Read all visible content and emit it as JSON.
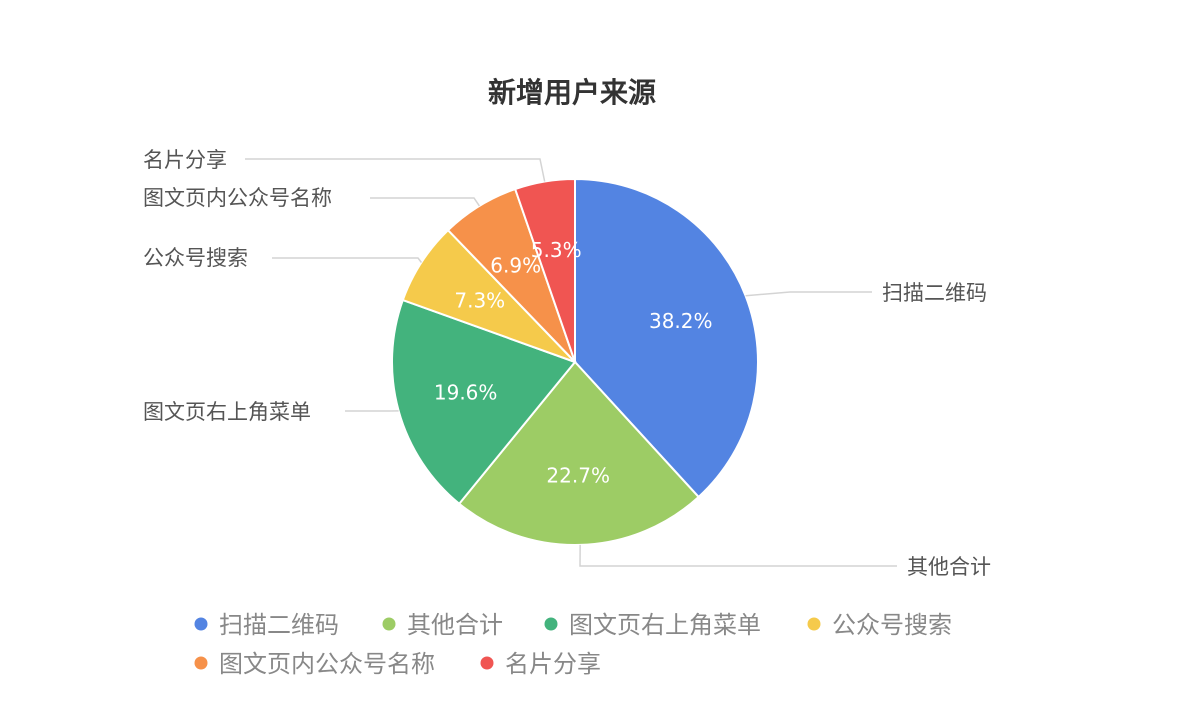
{
  "chart_data": {
    "type": "pie",
    "title": "新增用户来源",
    "slices": [
      {
        "label": "扫描二维码",
        "value": 38.2,
        "value_label": "38.2%",
        "color": "#5384E2"
      },
      {
        "label": "其他合计",
        "value": 22.7,
        "value_label": "22.7%",
        "color": "#9DCC65"
      },
      {
        "label": "图文页右上角菜单",
        "value": 19.6,
        "value_label": "19.6%",
        "color": "#43B37D"
      },
      {
        "label": "公众号搜索",
        "value": 7.3,
        "value_label": "7.3%",
        "color": "#F5CA4B"
      },
      {
        "label": "图文页内公众号名称",
        "value": 6.9,
        "value_label": "6.9%",
        "color": "#F6914A"
      },
      {
        "label": "名片分享",
        "value": 5.3,
        "value_label": "5.3%",
        "color": "#F05552"
      }
    ],
    "legend": {
      "placement": "bottom",
      "items": [
        "扫描二维码",
        "其他合计",
        "图文页右上角菜单",
        "公众号搜索",
        "图文页内公众号名称",
        "名片分享"
      ]
    }
  }
}
